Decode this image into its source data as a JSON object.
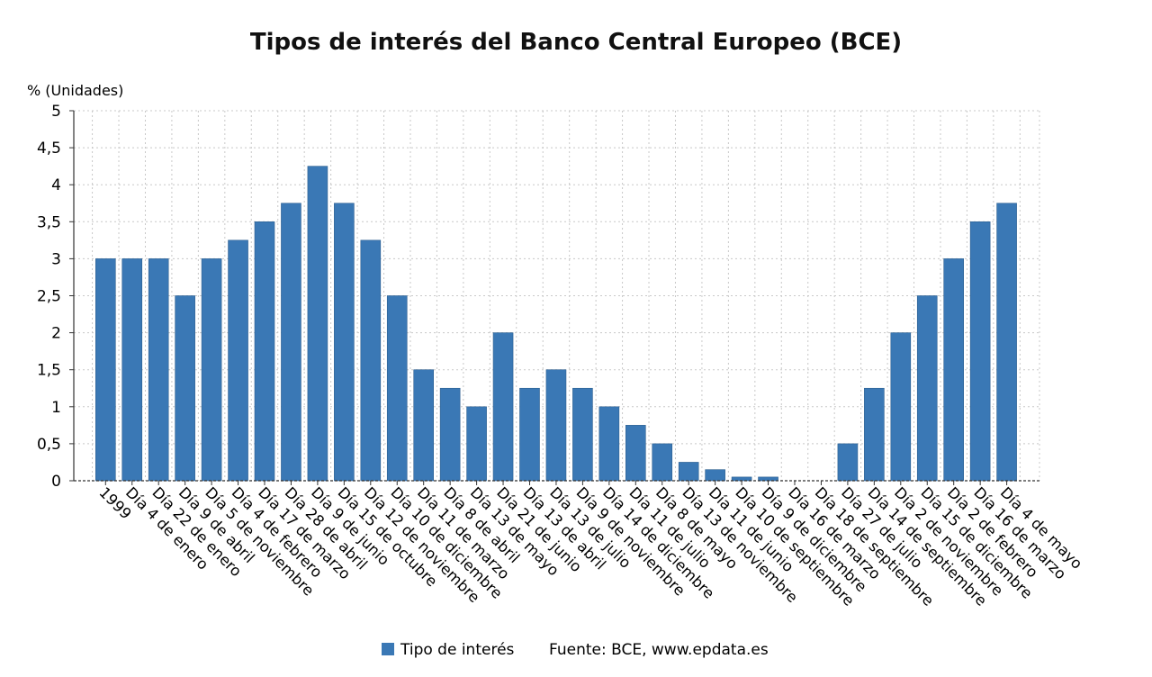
{
  "chart_data": {
    "type": "bar",
    "title": "Tipos de interés del Banco Central Europeo (BCE)",
    "ylabel": "% (Unidades)",
    "xlabel": "",
    "ylim": [
      0,
      5
    ],
    "yticks": [
      "0",
      "0,5",
      "1",
      "1,5",
      "2",
      "2,5",
      "3",
      "3,5",
      "4",
      "4,5",
      "5"
    ],
    "grid": true,
    "bar_color": "#3a78b5",
    "categories": [
      "1999",
      "Día 4 de enero",
      "Día 22 de enero",
      "Día 9 de abril",
      "Día 5 de noviembre",
      "Día 4 de febrero",
      "Día 17 de marzo",
      "Día 28 de abril",
      "Día 9 de junio",
      "Día 15 de octubre",
      "Día 12 de noviembre",
      "Día 10 de diciembre",
      "Día 11 de marzo",
      "Día 8 de abril",
      "Día 13 de mayo",
      "Día 21 de junio",
      "Día 13 de abril",
      "Día 13 de julio",
      "Día 9 de noviembre",
      "Día 14 de diciembre",
      "Día 11 de julio",
      "Día 8 de mayo",
      "Día 13 de noviembre",
      "Día 11 de junio",
      "Día 10 de septiembre",
      "Día 9 de diciembre",
      "Día 16 de marzo",
      "Día 18 de septiembre",
      "Día 27 de julio",
      "Día 14 de septiembre",
      "Día 2 de noviembre",
      "Día 15 de diciembre",
      "Día 2 de febrero",
      "Día 16 de marzo",
      "Día 4 de mayo"
    ],
    "series": [
      {
        "name": "Tipo de interés",
        "values": [
          3,
          3,
          3,
          2.5,
          3,
          3.25,
          3.5,
          3.75,
          4.25,
          3.75,
          3.25,
          2.5,
          1.5,
          1.25,
          1,
          2,
          1.25,
          1.5,
          1.25,
          1,
          0.75,
          0.5,
          0.25,
          0.15,
          0.05,
          0.05,
          0,
          0,
          0.5,
          1.25,
          2,
          2.5,
          3,
          3.5,
          3.75
        ]
      }
    ],
    "legend": {
      "position": "bottom",
      "source": "Fuente: BCE, www.epdata.es"
    }
  }
}
